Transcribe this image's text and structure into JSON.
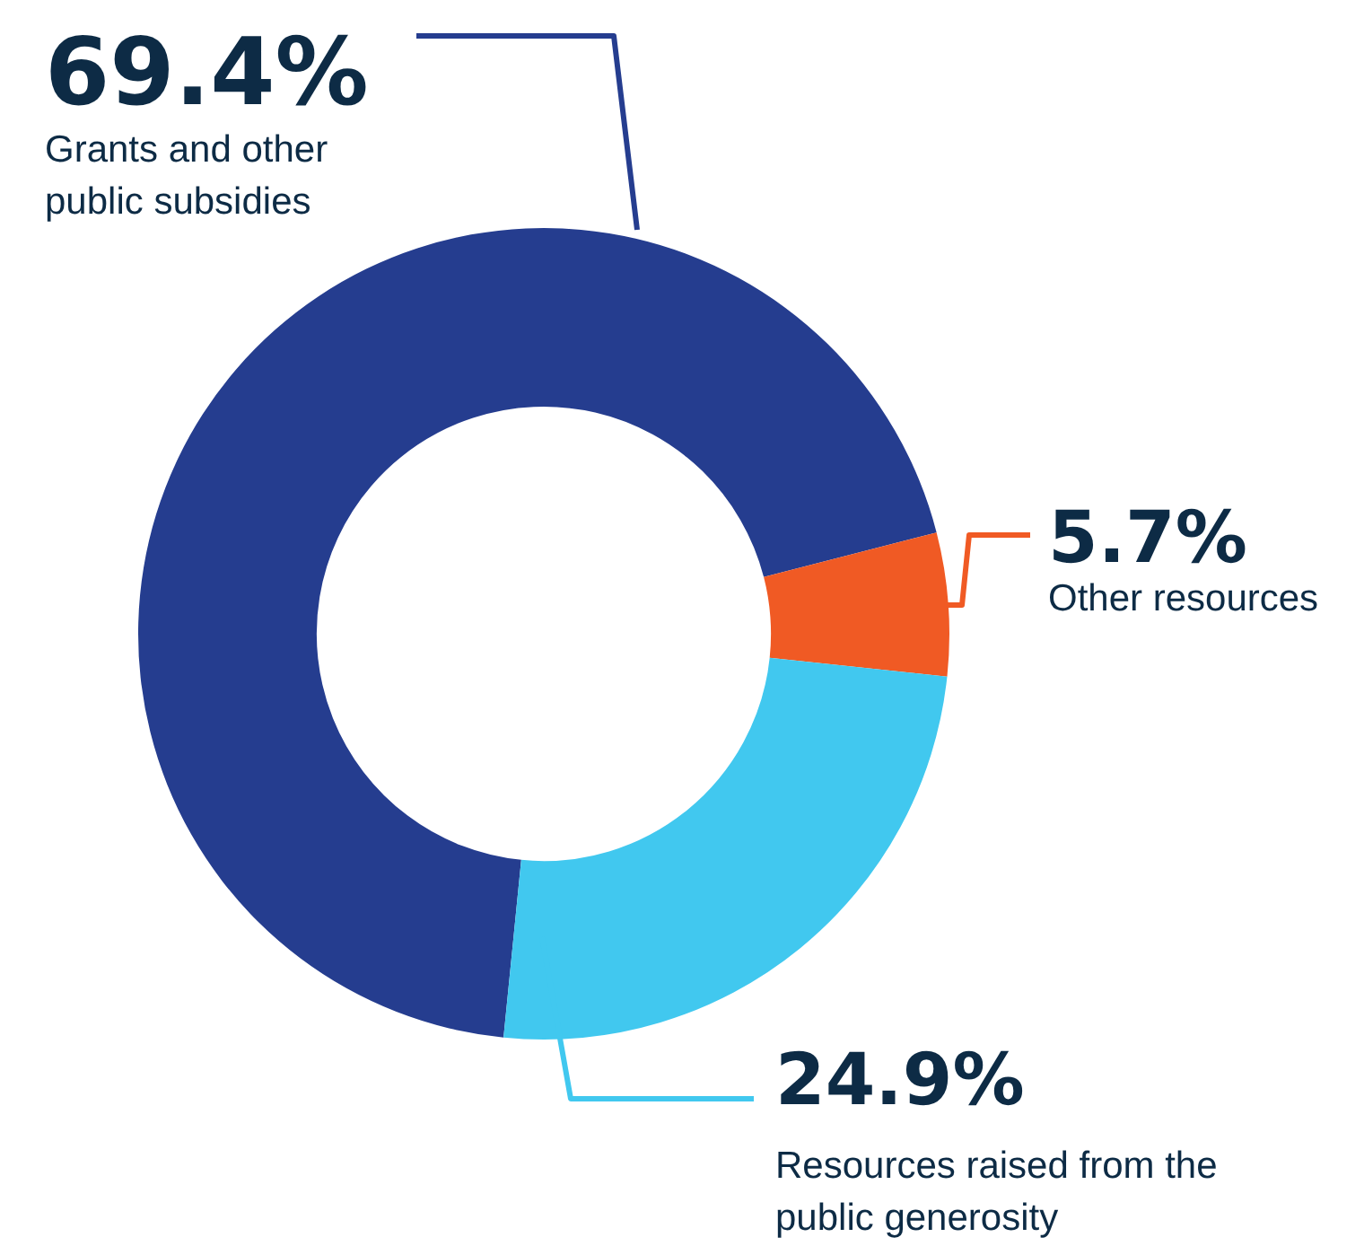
{
  "chart_data": {
    "type": "donut",
    "categories": [
      "Grants and other public subsidies",
      "Other resources",
      "Resources raised from the public generosity"
    ],
    "values": [
      69.4,
      5.7,
      24.9
    ],
    "colors": [
      "#253d8f",
      "#f05a24",
      "#41c8ef"
    ],
    "value_labels": [
      "69.4%",
      "5.7%",
      "24.9%"
    ],
    "legend": false
  }
}
